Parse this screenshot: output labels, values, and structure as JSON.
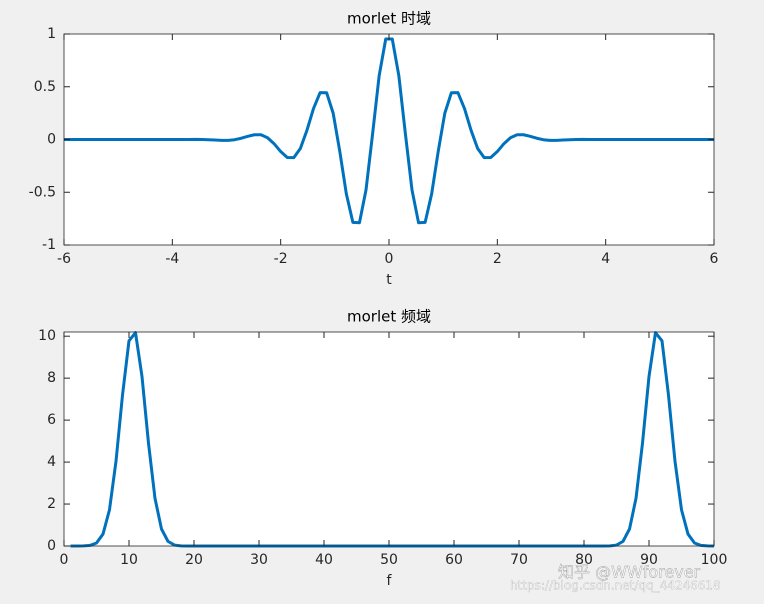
{
  "chart_data": [
    {
      "type": "line",
      "title": "morlet 时域",
      "xlabel": "t",
      "x": [
        -6,
        -5.8788,
        -5.7576,
        -5.6364,
        -5.5152,
        -5.3939,
        -5.2727,
        -5.1515,
        -5.0303,
        -4.9091,
        -4.7879,
        -4.6667,
        -4.5455,
        -4.4242,
        -4.303,
        -4.1818,
        -4.0606,
        -3.9394,
        -3.8182,
        -3.697,
        -3.5758,
        -3.4545,
        -3.3333,
        -3.2121,
        -3.0909,
        -2.9697,
        -2.8485,
        -2.7273,
        -2.6061,
        -2.4848,
        -2.3636,
        -2.2424,
        -2.1212,
        -2,
        -1.8788,
        -1.7576,
        -1.6364,
        -1.5152,
        -1.3939,
        -1.2727,
        -1.1515,
        -1.0303,
        -0.9091,
        -0.7879,
        -0.6667,
        -0.5455,
        -0.4242,
        -0.303,
        -0.1818,
        -0.0606,
        0.0606,
        0.1818,
        0.303,
        0.4242,
        0.5455,
        0.6667,
        0.7879,
        0.9091,
        1.0303,
        1.1515,
        1.2727,
        1.3939,
        1.5152,
        1.6364,
        1.7576,
        1.8788,
        2,
        2.1212,
        2.2424,
        2.3636,
        2.4848,
        2.6061,
        2.7273,
        2.8485,
        2.9697,
        3.0909,
        3.2121,
        3.3333,
        3.4545,
        3.5758,
        3.697,
        3.8182,
        3.9394,
        4.0606,
        4.1818,
        4.303,
        4.4242,
        4.5455,
        4.6667,
        4.7879,
        4.9091,
        5.0303,
        5.1515,
        5.2727,
        5.3939,
        5.5152,
        5.6364,
        5.7576,
        5.8788,
        6
      ],
      "series": [
        {
          "color": "#0072bd",
          "values": [
            0,
            0,
            0,
            0,
            0,
            0,
            0,
            0,
            0,
            0,
            0,
            0,
            0,
            0,
            0,
            0,
            0,
            0,
            0,
            0,
            0.001,
            0,
            -0.002,
            -0.005,
            -0.008,
            -0.008,
            -0.002,
            0.012,
            0.03,
            0.045,
            0.045,
            0.017,
            -0.04,
            -0.114,
            -0.171,
            -0.172,
            -0.085,
            0.087,
            0.293,
            0.444,
            0.443,
            0.249,
            -0.111,
            -0.514,
            -0.786,
            -0.789,
            -0.477,
            0.053,
            0.604,
            0.952,
            0.952,
            0.604,
            0.053,
            -0.477,
            -0.789,
            -0.786,
            -0.514,
            -0.111,
            0.249,
            0.443,
            0.444,
            0.293,
            0.087,
            -0.085,
            -0.172,
            -0.171,
            -0.114,
            -0.04,
            0.017,
            0.045,
            0.045,
            0.03,
            0.012,
            -0.002,
            -0.008,
            -0.008,
            -0.005,
            -0.002,
            0,
            0.001,
            0,
            0,
            0,
            0,
            0,
            0,
            0,
            0,
            0,
            0,
            0,
            0,
            0,
            0,
            0,
            0,
            0,
            0,
            0,
            0
          ]
        }
      ],
      "xlim": [
        -6,
        6
      ],
      "xticks": [
        -6,
        -4,
        -2,
        0,
        2,
        4,
        6
      ],
      "ylim": [
        -1,
        1
      ],
      "yticks": [
        -1,
        -0.5,
        0,
        0.5,
        1
      ]
    },
    {
      "type": "line",
      "title": "morlet 频域",
      "xlabel": "f",
      "x": [
        1,
        2,
        3,
        4,
        5,
        6,
        7,
        8,
        9,
        10,
        11,
        12,
        13,
        14,
        15,
        16,
        17,
        18,
        19,
        20,
        21,
        22,
        23,
        24,
        25,
        26,
        27,
        28,
        29,
        30,
        31,
        32,
        33,
        34,
        35,
        36,
        37,
        38,
        39,
        40,
        41,
        42,
        43,
        44,
        45,
        46,
        47,
        48,
        49,
        50,
        51,
        52,
        53,
        54,
        55,
        56,
        57,
        58,
        59,
        60,
        61,
        62,
        63,
        64,
        65,
        66,
        67,
        68,
        69,
        70,
        71,
        72,
        73,
        74,
        75,
        76,
        77,
        78,
        79,
        80,
        81,
        82,
        83,
        84,
        85,
        86,
        87,
        88,
        89,
        90,
        91,
        92,
        93,
        94,
        95,
        96,
        97,
        98,
        99,
        100
      ],
      "series": [
        {
          "color": "#0072bd",
          "values": [
            0,
            0.0004,
            0.004,
            0.027,
            0.143,
            0.569,
            1.73,
            4.04,
            7.19,
            9.78,
            10.17,
            8.08,
            4.9,
            2.27,
            0.81,
            0.22,
            0.045,
            0.007,
            0.001,
            0,
            0,
            0,
            0,
            0,
            0,
            0,
            0,
            0,
            0,
            0,
            0,
            0,
            0,
            0,
            0,
            0,
            0,
            0,
            0,
            0,
            0,
            0,
            0,
            0,
            0,
            0,
            0,
            0,
            0,
            0,
            0,
            0,
            0,
            0,
            0,
            0,
            0,
            0,
            0,
            0,
            0,
            0,
            0,
            0,
            0,
            0,
            0,
            0,
            0,
            0,
            0,
            0,
            0,
            0,
            0,
            0,
            0,
            0,
            0,
            0,
            0,
            0,
            0.001,
            0.007,
            0.045,
            0.22,
            0.81,
            2.27,
            4.9,
            8.08,
            10.17,
            9.78,
            7.19,
            4.04,
            1.73,
            0.569,
            0.143,
            0.027,
            0.004,
            0.0004
          ]
        }
      ],
      "xlim": [
        0,
        100
      ],
      "xticks": [
        0,
        10,
        20,
        30,
        40,
        50,
        60,
        70,
        80,
        90,
        100
      ],
      "ylim": [
        0,
        10.2
      ],
      "yticks": [
        0,
        2,
        4,
        6,
        8,
        10
      ]
    }
  ],
  "watermark": {
    "text": "知乎 @WWforever",
    "url": "https://blog.csdn.net/qq_44246618"
  }
}
